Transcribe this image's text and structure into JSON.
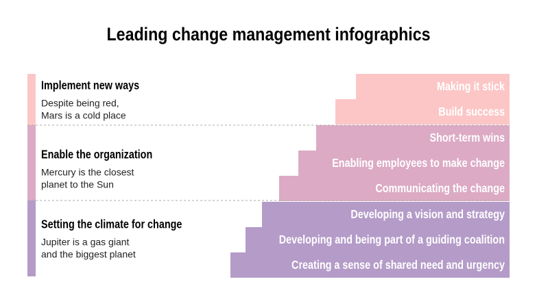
{
  "title": "Leading change management infographics",
  "sections": [
    {
      "heading": "Implement new ways",
      "description": [
        "Despite being red,",
        "Mars is a cold place"
      ],
      "color": "#fcc6c6"
    },
    {
      "heading": "Enable the organization",
      "description": [
        "Mercury is the closest",
        "planet to the Sun"
      ],
      "color": "#dcaac4"
    },
    {
      "heading": "Setting the climate for change",
      "description": [
        "Jupiter is a gas giant",
        "and the biggest planet"
      ],
      "color": "#b49bc8"
    }
  ],
  "steps": [
    {
      "label": "Making it stick",
      "color": "#fcc6c6"
    },
    {
      "label": "Build success",
      "color": "#fcc6c6"
    },
    {
      "label": "Short-term wins",
      "color": "#dcaac4"
    },
    {
      "label": "Enabling employees to make change",
      "color": "#dcaac4"
    },
    {
      "label": "Communicating the change",
      "color": "#dcaac4"
    },
    {
      "label": "Developing a vision and strategy",
      "color": "#b49bc8"
    },
    {
      "label": "Developing and being part of a guiding coalition",
      "color": "#b49bc8"
    },
    {
      "label": "Creating a sense of shared need and urgency",
      "color": "#b49bc8"
    }
  ]
}
